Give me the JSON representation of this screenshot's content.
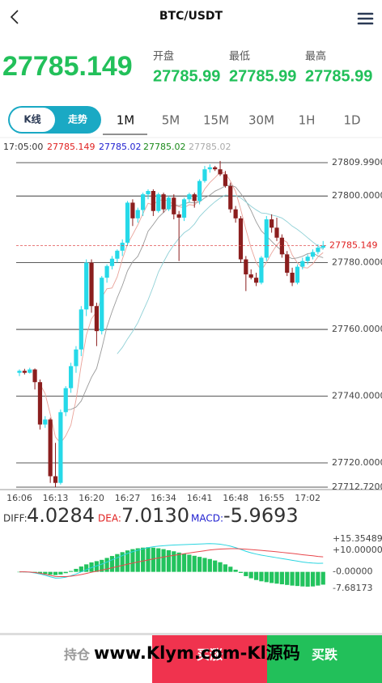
{
  "header": {
    "title": "BTC/USDT"
  },
  "ticker": {
    "price": "27785.149",
    "stats": [
      {
        "label": "开盘",
        "value": "27785.99"
      },
      {
        "label": "最低",
        "value": "27785.99"
      },
      {
        "label": "最高",
        "value": "27785.99"
      }
    ]
  },
  "tabs": {
    "mode": [
      "K线",
      "走势"
    ],
    "intervals": [
      "1M",
      "5M",
      "15M",
      "30M",
      "1H",
      "1D"
    ]
  },
  "info": {
    "time": "17:05:00",
    "values": [
      "27785.149",
      "27785.02",
      "27785.02",
      "27785.02"
    ]
  },
  "kline": {
    "up_color": "#26d9e8",
    "down_color": "#8b1e1e",
    "ylim": [
      27712.72,
      27809.99
    ],
    "yticks": [
      {
        "value": 27809.99,
        "label": "27809.9900"
      },
      {
        "value": 27800,
        "label": "27800.0000"
      },
      {
        "value": 27780,
        "label": "27780.0000"
      },
      {
        "value": 27760,
        "label": "27760.0000"
      },
      {
        "value": 27740,
        "label": "27740.0000"
      },
      {
        "value": 27720,
        "label": "27720.0000"
      },
      {
        "value": 27712.72,
        "label": "27712.7200"
      }
    ],
    "last_price": 27785.149,
    "times": [
      "16:06",
      "16:13",
      "16:20",
      "16:27",
      "16:34",
      "16:41",
      "16:48",
      "16:55",
      "17:02"
    ],
    "candles": [
      [
        27747.0,
        27748.0,
        27746.0,
        27747.6
      ],
      [
        27747.6,
        27748.2,
        27746.5,
        27747.0
      ],
      [
        27747.0,
        27748.5,
        27746.8,
        27748.0
      ],
      [
        27748.0,
        27748.3,
        27742.0,
        27744.2
      ],
      [
        27744.2,
        27745.0,
        27730.0,
        27731.5
      ],
      [
        27731.5,
        27734.0,
        27730.5,
        27733.0
      ],
      [
        27733.0,
        27733.5,
        27714.0,
        27716.0
      ],
      [
        27716.0,
        27726.0,
        27712.7,
        27714.0
      ],
      [
        27714.0,
        27736.0,
        27713.5,
        27735.2
      ],
      [
        27735.2,
        27743.0,
        27734.0,
        27742.4
      ],
      [
        27742.4,
        27750.0,
        27741.0,
        27749.0
      ],
      [
        27749.0,
        27755.0,
        27747.0,
        27754.0
      ],
      [
        27754.0,
        27767.0,
        27752.0,
        27766.0
      ],
      [
        27766.0,
        27781.0,
        27764.0,
        27780.0
      ],
      [
        27780.0,
        27781.0,
        27765.0,
        27767.0
      ],
      [
        27767.0,
        27768.0,
        27755.0,
        27759.5
      ],
      [
        27759.5,
        27776.0,
        27758.5,
        27775.5
      ],
      [
        27775.5,
        27779.5,
        27774.0,
        27779.0
      ],
      [
        27779.0,
        27782.0,
        27778.0,
        27781.2
      ],
      [
        27781.2,
        27784.0,
        27780.0,
        27783.6
      ],
      [
        27783.6,
        27787.0,
        27782.0,
        27786.0
      ],
      [
        27786.0,
        27798.5,
        27785.0,
        27798.0
      ],
      [
        27798.0,
        27799.0,
        27791.0,
        27793.3
      ],
      [
        27793.3,
        27796.5,
        27792.0,
        27795.8
      ],
      [
        27795.8,
        27801.0,
        27794.0,
        27800.5
      ],
      [
        27800.5,
        27802.0,
        27799.0,
        27801.5
      ],
      [
        27801.5,
        27802.0,
        27794.0,
        27795.5
      ],
      [
        27795.5,
        27801.0,
        27795.0,
        27800.5
      ],
      [
        27800.5,
        27801.0,
        27795.0,
        27796.0
      ],
      [
        27796.0,
        27800.0,
        27795.5,
        27799.5
      ],
      [
        27799.5,
        27800.5,
        27793.0,
        27794.5
      ],
      [
        27794.5,
        27795.5,
        27780.5,
        27793.5
      ],
      [
        27793.5,
        27799.5,
        27792.5,
        27799.0
      ],
      [
        27799.0,
        27801.0,
        27798.0,
        27800.5
      ],
      [
        27800.5,
        27801.0,
        27796.5,
        27798.5
      ],
      [
        27798.5,
        27805.0,
        27797.5,
        27804.5
      ],
      [
        27804.5,
        27809.0,
        27804.0,
        27808.0
      ],
      [
        27808.0,
        27809.5,
        27807.0,
        27808.6
      ],
      [
        27808.6,
        27809.0,
        27807.5,
        27808.0
      ],
      [
        27808.0,
        27810.5,
        27806.0,
        27806.5
      ],
      [
        27806.5,
        27807.5,
        27802.5,
        27803.0
      ],
      [
        27803.0,
        27804.0,
        27795.0,
        27796.0
      ],
      [
        27796.0,
        27797.0,
        27792.0,
        27793.3
      ],
      [
        27793.3,
        27794.0,
        27780.0,
        27781.0
      ],
      [
        27781.0,
        27782.0,
        27771.5,
        27776.5
      ],
      [
        27776.5,
        27778.0,
        27775.0,
        27775.5
      ],
      [
        27775.5,
        27777.0,
        27773.0,
        27774.0
      ],
      [
        27774.0,
        27782.0,
        27773.5,
        27781.5
      ],
      [
        27781.5,
        27794.0,
        27780.5,
        27793.0
      ],
      [
        27793.0,
        27794.5,
        27789.0,
        27790.5
      ],
      [
        27790.5,
        27793.5,
        27786.5,
        27787.5
      ],
      [
        27787.5,
        27788.5,
        27781.5,
        27782.5
      ],
      [
        27782.5,
        27783.5,
        27776.0,
        27777.0
      ],
      [
        27777.0,
        27778.5,
        27773.0,
        27774.0
      ],
      [
        27774.0,
        27779.5,
        27773.5,
        27778.8
      ],
      [
        27778.8,
        27781.5,
        27778.0,
        27780.5
      ],
      [
        27780.5,
        27782.5,
        27779.5,
        27781.8
      ],
      [
        27781.8,
        27784.0,
        27781.0,
        27783.2
      ],
      [
        27783.2,
        27785.5,
        27782.5,
        27784.5
      ],
      [
        27784.5,
        27786.5,
        27784.0,
        27785.149
      ]
    ]
  },
  "macd": {
    "diff_label": "DIFF:",
    "diff_value": "4.0284",
    "dea_label": "DEA:",
    "dea_value": "7.0130",
    "macd_label": "MACD:",
    "macd_value": "-5.9693",
    "bar_color": "#22c35e",
    "diff_color": "#2bd5e0",
    "dea_color": "#e8474c",
    "ylim": [
      -7.68173,
      15.35489
    ],
    "yticks": [
      {
        "value": 15.35489,
        "label": "+15.35489"
      },
      {
        "value": 10,
        "label": "+10.00000"
      },
      {
        "value": 0,
        "label": "-0.00000"
      },
      {
        "value": -7.68173,
        "label": "-7.68173"
      }
    ],
    "hist": [
      0,
      0,
      -0.2,
      -0.4,
      -0.7,
      -1.0,
      -1.3,
      -1.5,
      -1.2,
      -0.6,
      0.4,
      1.4,
      2.5,
      3.5,
      4.4,
      5.0,
      5.6,
      6.5,
      7.4,
      8.3,
      9.2,
      10.0,
      10.6,
      11.0,
      11.3,
      11.5,
      11.3,
      11.0,
      10.6,
      10.1,
      9.6,
      9.0,
      8.5,
      8.0,
      7.5,
      7.0,
      6.5,
      6.0,
      5.3,
      4.5,
      3.5,
      2.4,
      1.0,
      -0.5,
      -2.0,
      -3.0,
      -3.8,
      -4.4,
      -4.8,
      -5.2,
      -5.5,
      -5.8,
      -6.1,
      -6.4,
      -6.6,
      -6.8,
      -6.9,
      -6.8,
      -6.4,
      -5.9693
    ],
    "diff": [
      0,
      0,
      -0.2,
      -0.5,
      -1.0,
      -1.6,
      -2.3,
      -2.9,
      -2.8,
      -2.5,
      -1.8,
      -1.0,
      0.0,
      1.0,
      2.0,
      2.8,
      3.6,
      4.6,
      5.6,
      6.6,
      7.6,
      8.6,
      9.4,
      10.1,
      10.7,
      11.3,
      11.7,
      12.0,
      12.2,
      12.4,
      12.5,
      12.6,
      12.7,
      12.8,
      12.9,
      13.0,
      13.1,
      13.2,
      13.1,
      12.9,
      12.5,
      12.0,
      11.3,
      10.5,
      9.6,
      8.9,
      8.3,
      7.8,
      7.4,
      7.0,
      6.6,
      6.2,
      5.8,
      5.4,
      5.0,
      4.6,
      4.3,
      4.1,
      4.0,
      4.0284
    ],
    "dea": [
      0,
      0,
      -0.1,
      -0.3,
      -0.65,
      -1.1,
      -1.65,
      -2.15,
      -2.2,
      -2.2,
      -2.0,
      -1.7,
      -1.25,
      -0.75,
      -0.2,
      0.3,
      0.8,
      1.35,
      1.9,
      2.45,
      3.0,
      3.6,
      4.1,
      4.6,
      5.05,
      5.55,
      6.05,
      6.5,
      6.9,
      7.35,
      7.7,
      8.1,
      8.45,
      8.8,
      9.15,
      9.5,
      9.85,
      10.2,
      10.45,
      10.65,
      10.75,
      10.8,
      10.8,
      10.75,
      10.6,
      10.4,
      10.2,
      10.0,
      9.8,
      9.6,
      9.35,
      9.1,
      8.85,
      8.6,
      8.3,
      8.0,
      7.75,
      7.5,
      7.2,
      7.013
    ]
  },
  "footer": {
    "hold": "持仓",
    "buy_up": "买涨",
    "buy_down": "买跌",
    "watermark": "www.Klym.com-Kl源码"
  }
}
